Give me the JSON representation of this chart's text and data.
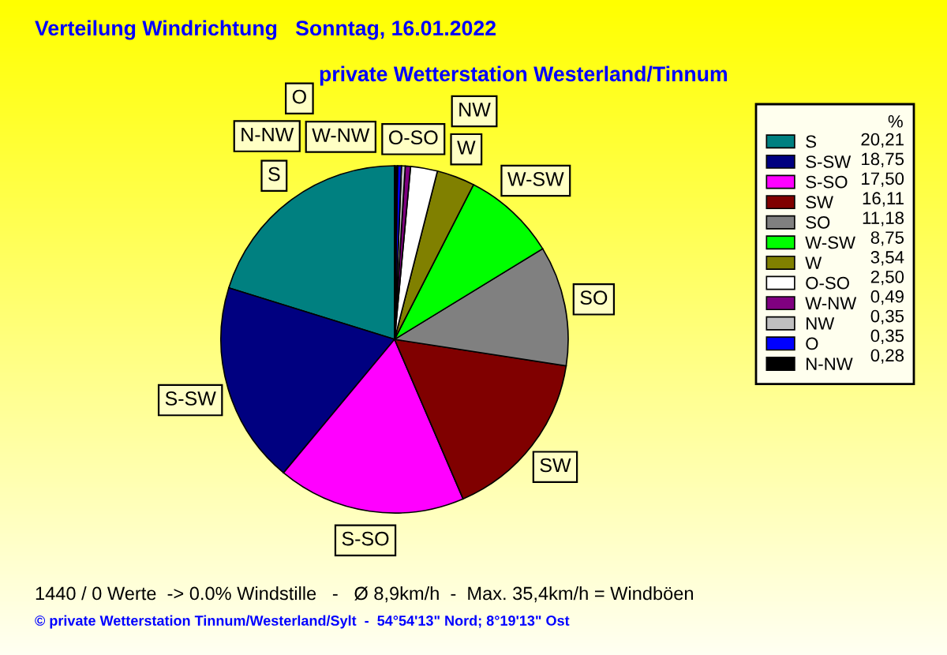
{
  "chart_data": {
    "type": "pie",
    "title": "Verteilung Windrichtung   Sonntag, 16.01.2022",
    "subtitle": "private Wetterstation Westerland/Tinnum",
    "legend_title": "%",
    "legend": "top right",
    "categories": [
      "S",
      "S-SW",
      "S-SO",
      "SW",
      "SO",
      "W-SW",
      "W",
      "O-SO",
      "W-NW",
      "NW",
      "O",
      "N-NW"
    ],
    "values": [
      20.21,
      18.75,
      17.5,
      16.11,
      11.18,
      8.75,
      3.54,
      2.5,
      0.49,
      0.35,
      0.35,
      0.28
    ],
    "value_labels": [
      "20,21",
      "18,75",
      "17,50",
      "16,11",
      "11,18",
      "8,75",
      "3,54",
      "2,50",
      "0,49",
      "0,35",
      "0,35",
      "0,28"
    ],
    "colors": [
      "#008080",
      "#000080",
      "#ff00ff",
      "#800000",
      "#808080",
      "#00ff00",
      "#808000",
      "#ffffff",
      "#800080",
      "#c0c0c0",
      "#0000ff",
      "#000000"
    ],
    "annotations": [
      "1440 / 0 Werte  -> 0.0% Windstille   -   Ø 8,9km/h  -  Max. 35,4km/h = Windböen",
      "© private Wetterstation Tinnum/Westerland/Sylt  -  54°54'13\" Nord; 8°19'13\" Ost"
    ]
  }
}
